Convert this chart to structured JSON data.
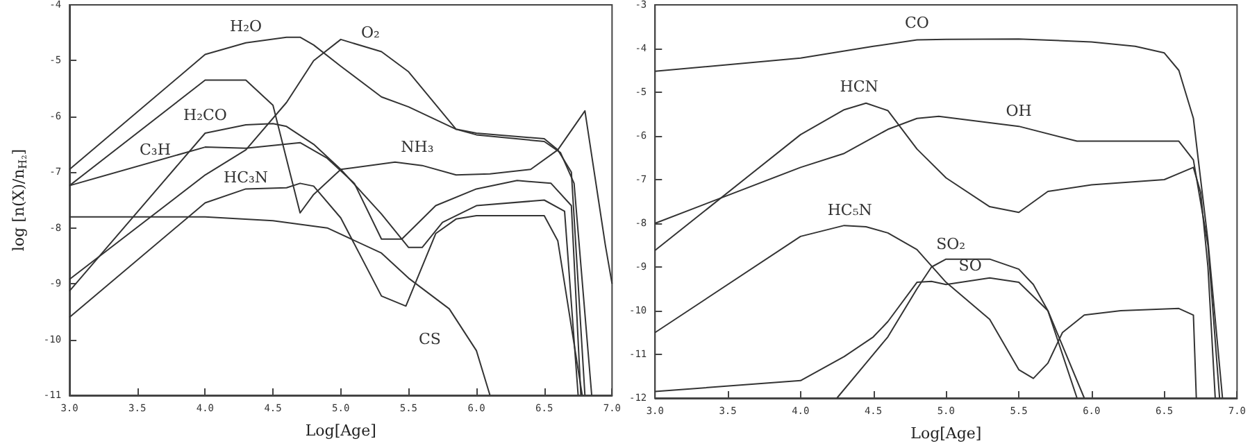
{
  "chart_data": [
    {
      "type": "line",
      "xlabel": "Log[Age]",
      "ylabel": "log [n(X)/n$_{H₂}$]",
      "marker": "none",
      "xlim": [
        3,
        7
      ],
      "ylim": [
        -11,
        -4
      ],
      "xticks": [
        {
          "value": 3,
          "label": "3.0"
        },
        {
          "value": 3.5,
          "label": "3.5"
        },
        {
          "value": 4,
          "label": "4.0"
        },
        {
          "value": 4.5,
          "label": "4.5"
        },
        {
          "value": 5,
          "label": "5.0"
        },
        {
          "value": 5.5,
          "label": "5.5"
        },
        {
          "value": 6,
          "label": "6.0"
        },
        {
          "value": 6.5,
          "label": "6.5"
        },
        {
          "value": 7,
          "label": "7.0"
        }
      ],
      "yticks": [
        -11,
        -10,
        -9,
        -8,
        -7,
        -6,
        -5,
        -4
      ],
      "series": [
        {
          "name": "H₂O",
          "color": "#333333",
          "x": [
            3,
            4,
            4.3,
            4.6,
            4.7,
            4.8,
            5,
            5.3,
            5.5,
            5.85,
            6,
            6.5,
            6.62,
            6.72,
            6.85
          ],
          "values": [
            -6.95,
            -4.89,
            -4.68,
            -4.58,
            -4.58,
            -4.72,
            -5.1,
            -5.65,
            -5.83,
            -6.23,
            -6.33,
            -6.45,
            -6.65,
            -7.2,
            -11
          ]
        },
        {
          "name": "O₂",
          "color": "#333333",
          "x": [
            3,
            4,
            4.3,
            4.6,
            4.8,
            5,
            5.3,
            5.5,
            5.85,
            6,
            6.5,
            6.6,
            6.7,
            6.8
          ],
          "values": [
            -8.92,
            -7.05,
            -6.6,
            -5.75,
            -5,
            -4.62,
            -4.84,
            -5.2,
            -6.23,
            -6.3,
            -6.4,
            -6.6,
            -7,
            -11
          ]
        },
        {
          "name": "NH₃",
          "color": "#333333",
          "x": [
            3,
            4,
            4.3,
            4.5,
            4.7,
            4.8,
            5,
            5.4,
            5.6,
            5.85,
            6.1,
            6.4,
            6.6,
            6.8,
            6.9,
            6.95,
            7
          ],
          "values": [
            -7.24,
            -5.35,
            -5.35,
            -5.8,
            -7.73,
            -7.4,
            -6.95,
            -6.82,
            -6.88,
            -7.05,
            -7.03,
            -6.95,
            -6.6,
            -5.9,
            -7.5,
            -8.3,
            -9
          ]
        },
        {
          "name": "H₂CO",
          "color": "#333333",
          "x": [
            3,
            4,
            4.3,
            4.5,
            4.6,
            4.8,
            5,
            5.3,
            5.5,
            5.6,
            5.75,
            6,
            6.5,
            6.65,
            6.75
          ],
          "values": [
            -9.13,
            -6.3,
            -6.15,
            -6.13,
            -6.18,
            -6.5,
            -6.95,
            -7.75,
            -8.35,
            -8.35,
            -7.9,
            -7.6,
            -7.5,
            -7.7,
            -11
          ]
        },
        {
          "name": "C₃H",
          "color": "#333333",
          "x": [
            3,
            4,
            4.3,
            4.7,
            4.9,
            5.1,
            5.3,
            5.45,
            5.7,
            6,
            6.3,
            6.55,
            6.7,
            6.77
          ],
          "values": [
            -7.24,
            -6.55,
            -6.57,
            -6.47,
            -6.75,
            -7.2,
            -8.2,
            -8.2,
            -7.6,
            -7.3,
            -7.15,
            -7.2,
            -7.6,
            -11
          ]
        },
        {
          "name": "HC₃N",
          "color": "#333333",
          "x": [
            3,
            4,
            4.3,
            4.6,
            4.7,
            4.8,
            5,
            5.3,
            5.48,
            5.7,
            5.85,
            6,
            6.5,
            6.6,
            6.78
          ],
          "values": [
            -9.6,
            -7.55,
            -7.3,
            -7.28,
            -7.2,
            -7.25,
            -7.82,
            -9.22,
            -9.4,
            -8.1,
            -7.84,
            -7.78,
            -7.78,
            -8.23,
            -11
          ]
        },
        {
          "name": "CS",
          "color": "#333333",
          "x": [
            3,
            4,
            4.5,
            4.9,
            5.3,
            5.5,
            5.8,
            6,
            6.1
          ],
          "values": [
            -7.8,
            -7.8,
            -7.87,
            -8,
            -8.45,
            -8.9,
            -9.45,
            -10.2,
            -11
          ]
        }
      ]
    },
    {
      "type": "line",
      "xlabel": "Log[Age]",
      "marker": "none",
      "xlim": [
        3,
        7
      ],
      "ylim": [
        -12,
        -3
      ],
      "xticks": [
        {
          "value": 3,
          "label": "3.0"
        },
        {
          "value": 3.5,
          "label": "3.5"
        },
        {
          "value": 4,
          "label": "4.0"
        },
        {
          "value": 4.5,
          "label": "4.5"
        },
        {
          "value": 5,
          "label": "5.0"
        },
        {
          "value": 5.5,
          "label": "5.5"
        },
        {
          "value": 6,
          "label": "6.0"
        },
        {
          "value": 6.5,
          "label": "6.5"
        },
        {
          "value": 7,
          "label": "7.0"
        }
      ],
      "yticks": [
        -12,
        -11,
        -10,
        -9,
        -8,
        -7,
        -6,
        -5,
        -4,
        -3
      ],
      "series": [
        {
          "name": "CO",
          "color": "#333333",
          "x": [
            3,
            4,
            4.5,
            4.8,
            5,
            5.5,
            6,
            6.3,
            6.5,
            6.6,
            6.7,
            6.8,
            6.9
          ],
          "values": [
            -4.52,
            -4.22,
            -3.95,
            -3.8,
            -3.79,
            -3.78,
            -3.85,
            -3.95,
            -4.1,
            -4.5,
            -5.6,
            -8.4,
            -12
          ]
        },
        {
          "name": "HCN",
          "color": "#333333",
          "x": [
            3,
            4,
            4.3,
            4.45,
            4.6,
            4.8,
            5,
            5.3,
            5.5,
            5.7,
            6,
            6.5,
            6.7,
            6.75,
            6.8,
            6.85
          ],
          "values": [
            -8.62,
            -5.97,
            -5.4,
            -5.25,
            -5.42,
            -6.3,
            -6.96,
            -7.62,
            -7.75,
            -7.27,
            -7.12,
            -7,
            -6.72,
            -7.3,
            -9,
            -12
          ]
        },
        {
          "name": "OH",
          "color": "#333333",
          "x": [
            3,
            4,
            4.3,
            4.6,
            4.8,
            4.95,
            5.5,
            5.9,
            6.6,
            6.7,
            6.8,
            6.88
          ],
          "values": [
            -8,
            -6.72,
            -6.4,
            -5.85,
            -5.6,
            -5.55,
            -5.78,
            -6.12,
            -6.12,
            -6.55,
            -8.5,
            -12
          ]
        },
        {
          "name": "HC₅N",
          "color": "#333333",
          "x": [
            3,
            4,
            4.3,
            4.45,
            4.6,
            4.8,
            5,
            5.3,
            5.5,
            5.6,
            5.7,
            5.8,
            5.95,
            6.2,
            6.6,
            6.7,
            6.72
          ],
          "values": [
            -10.5,
            -8.3,
            -8.05,
            -8.08,
            -8.22,
            -8.6,
            -9.35,
            -10.2,
            -11.35,
            -11.55,
            -11.2,
            -10.5,
            -10.1,
            -10,
            -9.95,
            -10.1,
            -12
          ]
        },
        {
          "name": "SO",
          "color": "#333333",
          "x": [
            3,
            4,
            4.3,
            4.5,
            4.6,
            4.8,
            4.9,
            5,
            5.3,
            5.5,
            5.7,
            5.95
          ],
          "values": [
            -11.85,
            -11.6,
            -11.05,
            -10.6,
            -10.25,
            -9.35,
            -9.33,
            -9.4,
            -9.25,
            -9.35,
            -10,
            -12
          ]
        },
        {
          "name": "SO₂",
          "color": "#333333",
          "x": [
            4.25,
            4.45,
            4.6,
            4.8,
            4.9,
            5,
            5.3,
            5.5,
            5.6,
            5.7,
            5.9
          ],
          "values": [
            -12,
            -11.2,
            -10.6,
            -9.5,
            -9,
            -8.82,
            -8.82,
            -9.05,
            -9.4,
            -10,
            -12
          ]
        }
      ]
    }
  ]
}
